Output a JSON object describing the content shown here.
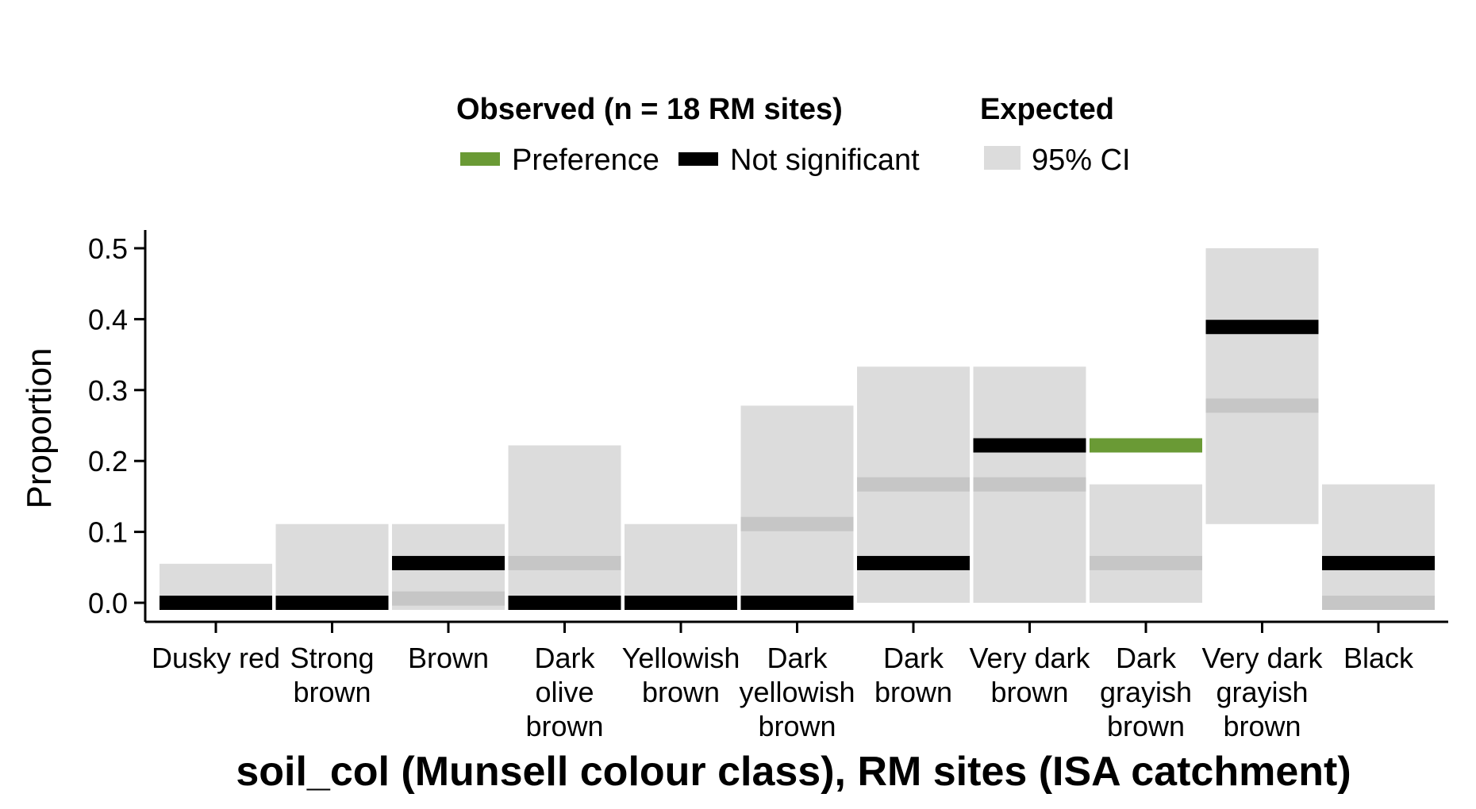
{
  "chart_data": {
    "type": "bar",
    "xlabel": "soil_col (Munsell colour class), RM sites (ISA catchment)",
    "ylabel": "Proportion",
    "ylim": [
      0,
      0.5
    ],
    "y_ticks": [
      "0.0",
      "0.1",
      "0.2",
      "0.3",
      "0.4",
      "0.5"
    ],
    "grid": false,
    "legend": {
      "placement": "top",
      "observed_title": "Observed (n = 18 RM sites)",
      "expected_title": "Expected",
      "items": [
        {
          "label": "Preference",
          "color": "#6a9a35"
        },
        {
          "label": "Not significant",
          "color": "#000000"
        },
        {
          "label": "95% CI",
          "color": "#dcdcdc"
        }
      ]
    },
    "colors": {
      "ci": "#dcdcdc",
      "expected_mean": "#c6c6c6",
      "preference": "#6a9a35",
      "not_significant": "#000000"
    },
    "categories": [
      {
        "label": [
          "Dusky red"
        ],
        "ci": [
          0.0,
          0.055
        ],
        "expected": 0.0,
        "observed": 0.0,
        "status": "not_significant"
      },
      {
        "label": [
          "Strong",
          "brown"
        ],
        "ci": [
          0.0,
          0.111
        ],
        "expected": 0.0,
        "observed": 0.0,
        "status": "not_significant"
      },
      {
        "label": [
          "Brown"
        ],
        "ci": [
          -0.01,
          0.111
        ],
        "expected": 0.006,
        "observed": 0.056,
        "status": "not_significant"
      },
      {
        "label": [
          "Dark",
          "olive",
          "brown"
        ],
        "ci": [
          0.0,
          0.222
        ],
        "expected": 0.056,
        "observed": 0.0,
        "status": "not_significant"
      },
      {
        "label": [
          "Yellowish",
          "brown"
        ],
        "ci": [
          0.0,
          0.111
        ],
        "expected": 0.0,
        "observed": 0.0,
        "status": "not_significant"
      },
      {
        "label": [
          "Dark",
          "yellowish",
          "brown"
        ],
        "ci": [
          0.0,
          0.278
        ],
        "expected": 0.111,
        "observed": 0.0,
        "status": "not_significant"
      },
      {
        "label": [
          "Dark",
          "brown"
        ],
        "ci": [
          0.0,
          0.333
        ],
        "expected": 0.167,
        "observed": 0.056,
        "status": "not_significant"
      },
      {
        "label": [
          "Very dark",
          "brown"
        ],
        "ci": [
          0.0,
          0.333
        ],
        "expected": 0.167,
        "observed": 0.222,
        "status": "not_significant"
      },
      {
        "label": [
          "Dark",
          "grayish",
          "brown"
        ],
        "ci": [
          0.0,
          0.167
        ],
        "expected": 0.056,
        "observed": 0.222,
        "status": "preference"
      },
      {
        "label": [
          "Very dark",
          "grayish",
          "brown"
        ],
        "ci": [
          0.111,
          0.5
        ],
        "expected": 0.278,
        "observed": 0.389,
        "status": "not_significant"
      },
      {
        "label": [
          "Black"
        ],
        "ci": [
          0.0,
          0.167
        ],
        "expected": 0.0,
        "observed": 0.056,
        "status": "not_significant"
      }
    ]
  }
}
